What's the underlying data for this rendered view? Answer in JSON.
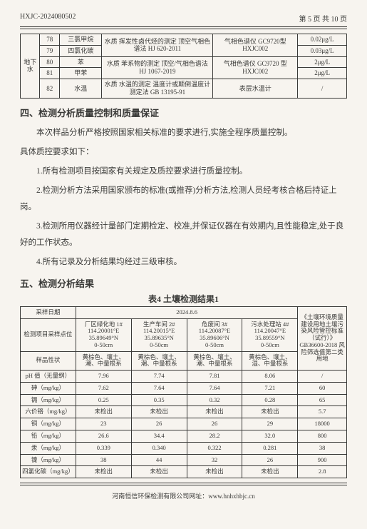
{
  "header": {
    "doc_no": "HXJC-2024080502",
    "page_label": "第 5 页 共 10 页"
  },
  "water_table": {
    "col_vert": "地下水",
    "rows": [
      {
        "no": "78",
        "name": "三氯甲烷",
        "method": "水质 挥发性卤代烃的测定 顶空气相色谱法 HJ 620-2011",
        "instr": "气相色谱仪 GC9720型 HXJC002",
        "limit": "0.02μg/L"
      },
      {
        "no": "79",
        "name": "四氯化碳",
        "method": "",
        "instr": "",
        "limit": "0.03μg/L"
      },
      {
        "no": "80",
        "name": "苯",
        "method": "水质 苯系物的测定 顶空/气相色谱法 HJ 1067-2019",
        "instr": "气相色谱仪 GC9720 型 HXJC002",
        "limit": "2μg/L"
      },
      {
        "no": "81",
        "name": "甲苯",
        "method": "",
        "instr": "",
        "limit": "2μg/L"
      },
      {
        "no": "82",
        "name": "水温",
        "method": "水质 水温的测定 温度计或颠倒温度计测定法 GB 13195-91",
        "instr": "表层水温计",
        "limit": "/"
      }
    ]
  },
  "section4": {
    "title": "四、检测分析质量控制和质量保证",
    "p1": "本次样品分析严格按照国家相关标准的要求进行,实施全程序质量控制。",
    "p2": "具体质控要求如下：",
    "l1": "1.所有检测项目按国家有关规定及质控要求进行质量控制。",
    "l2": "2.检测分析方法采用国家颁布的标准(或推荐)分析方法,检测人员经考核合格后持证上岗。",
    "l3": "3.检测所用仪器经计量部门定期检定、校准,并保证仪器在有效期内,且性能稳定,处于良好的工作状态。",
    "l4": "4.所有记录及分析结果均经过三级审核。"
  },
  "section5": {
    "title": "五、检测分析结果",
    "table_title": "表4    土壤检测结果1",
    "date_label": "采样日期",
    "date_value": "2024.8.6",
    "std_title": "《土壤环境质量 建设用地土壤污染风险管控标准（试行）》GB36600-2018 风险筛选值第二类用地",
    "row_headers": {
      "point": "检测项目采样点位",
      "trait": "样品性状"
    },
    "points": [
      "厂区绿化地 1#\n114.20001°E\n35.89649°N\n0-50cm",
      "生产车间 2#\n114.20015°E\n35.89635°N\n0-50cm",
      "危废间 3#\n114.20087°E\n35.89606°N\n0-50cm",
      "污水处理站 4#\n114.20047°E\n35.89559°N\n0-50cm"
    ],
    "traits": [
      "黄棕色、壤土、潮、中量根系",
      "黄棕色、壤土、潮、中量根系",
      "黄棕色、壤土、潮、中量根系",
      "黄棕色、壤土、湿、中量根系"
    ],
    "params": [
      {
        "name": "pH 值（无量纲）",
        "v": [
          "7.96",
          "7.74",
          "7.81",
          "8.06"
        ],
        "std": "/"
      },
      {
        "name": "砷（mg/kg）",
        "v": [
          "7.62",
          "7.64",
          "7.64",
          "7.21"
        ],
        "std": "60"
      },
      {
        "name": "镉（mg/kg）",
        "v": [
          "0.25",
          "0.35",
          "0.32",
          "0.28"
        ],
        "std": "65"
      },
      {
        "name": "六价铬（mg/kg）",
        "v": [
          "未检出",
          "未检出",
          "未检出",
          "未检出"
        ],
        "std": "5.7"
      },
      {
        "name": "铜（mg/kg）",
        "v": [
          "23",
          "26",
          "26",
          "29"
        ],
        "std": "18000"
      },
      {
        "name": "铅（mg/kg）",
        "v": [
          "26.6",
          "34.4",
          "28.2",
          "32.0"
        ],
        "std": "800"
      },
      {
        "name": "汞（mg/kg）",
        "v": [
          "0.339",
          "0.340",
          "0.322",
          "0.281"
        ],
        "std": "38"
      },
      {
        "name": "镍（mg/kg）",
        "v": [
          "38",
          "44",
          "32",
          "26"
        ],
        "std": "900"
      },
      {
        "name": "四氯化碳（mg/kg）",
        "v": [
          "未检出",
          "未检出",
          "未检出",
          "未检出"
        ],
        "std": "2.8"
      }
    ]
  },
  "footer": {
    "text": "河南恒信环保检测有限公司网址：www.hnhxhbjc.cn"
  }
}
